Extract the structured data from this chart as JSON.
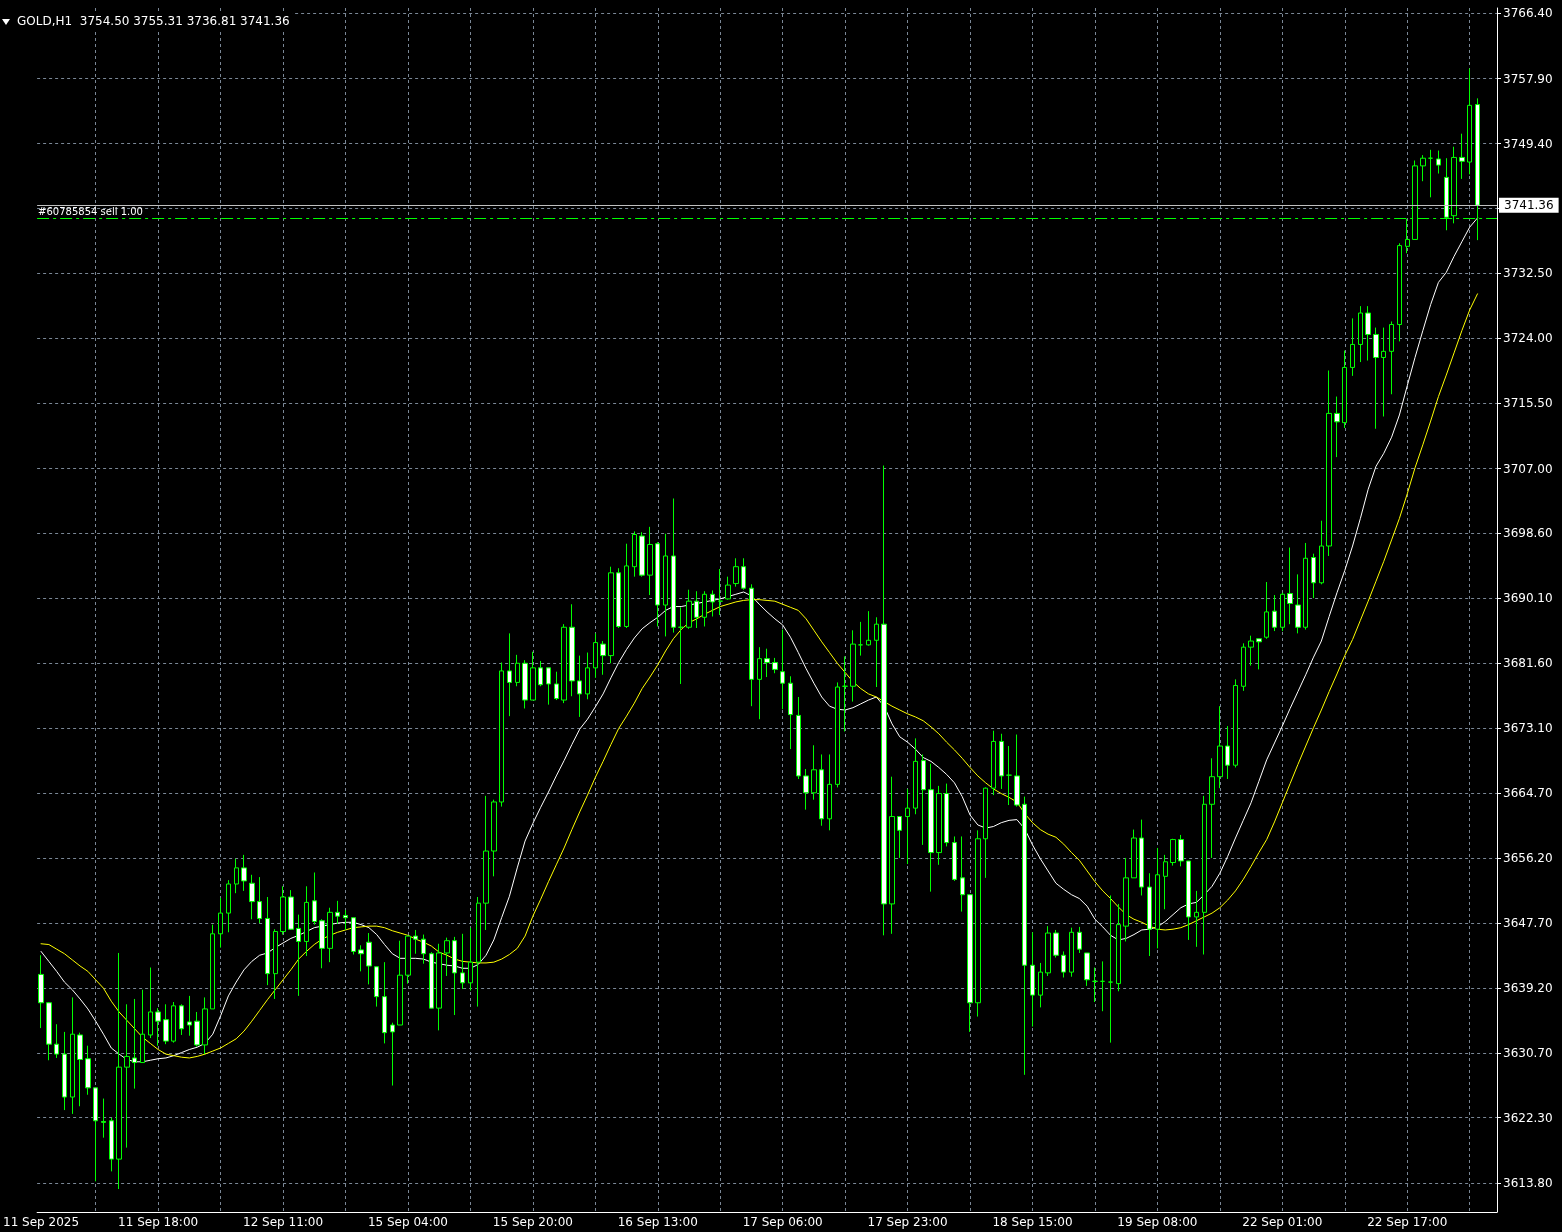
{
  "chart_data": {
    "type": "candlestick",
    "title": "GOLD,H1  3754.50 3755.31 3736.81 3741.36",
    "categories": [
      "11 Sep 2025",
      null,
      null,
      null,
      null,
      null,
      null,
      null,
      null,
      null,
      null,
      null,
      null,
      null,
      null,
      "11 Sep 18:00",
      null,
      null,
      null,
      null,
      null,
      null,
      null,
      null,
      null,
      null,
      null,
      null,
      null,
      null,
      null,
      "12 Sep 11:00",
      null,
      null,
      null,
      null,
      null,
      null,
      null,
      null,
      null,
      null,
      null,
      null,
      null,
      null,
      null,
      "15 Sep 04:00",
      null,
      null,
      null,
      null,
      null,
      null,
      null,
      null,
      null,
      null,
      null,
      null,
      null,
      null,
      null,
      "15 Sep 20:00",
      null,
      null,
      null,
      null,
      null,
      null,
      null,
      null,
      null,
      null,
      null,
      null,
      null,
      null,
      null,
      "16 Sep 13:00",
      null,
      null,
      null,
      null,
      null,
      null,
      null,
      null,
      null,
      null,
      null,
      null,
      null,
      null,
      null,
      "17 Sep 06:00",
      null,
      null,
      null,
      null,
      null,
      null,
      null,
      null,
      null,
      null,
      null,
      null,
      null,
      null,
      null,
      "17 Sep 23:00",
      null,
      null,
      null,
      null,
      null,
      null,
      null,
      null,
      null,
      null,
      null,
      null,
      null,
      null,
      null,
      "18 Sep 15:00",
      null,
      null,
      null,
      null,
      null,
      null,
      null,
      null,
      null,
      null,
      null,
      null,
      null,
      null,
      null,
      "19 Sep 08:00",
      null,
      null,
      null,
      null,
      null,
      null,
      null,
      null,
      null,
      null,
      null,
      null,
      null,
      null,
      null,
      "22 Sep 01:00",
      null,
      null,
      null,
      null,
      null,
      null,
      null,
      null,
      null,
      null,
      null,
      null,
      null,
      null,
      null,
      "22 Sep 17:00",
      null,
      null,
      null,
      null,
      null,
      null,
      null,
      null,
      null
    ],
    "ohlc": [
      [
        3641.0,
        3643.5,
        3634.0,
        3637.3
      ],
      [
        3637.3,
        3637.4,
        3629.8,
        3631.9
      ],
      [
        3631.9,
        3634.5,
        3630.1,
        3630.6
      ],
      [
        3630.6,
        3633.5,
        3623.3,
        3625.0
      ],
      [
        3625.0,
        3638.0,
        3622.8,
        3633.2
      ],
      [
        3633.1,
        3633.4,
        3623.8,
        3629.9
      ],
      [
        3630.0,
        3631.7,
        3625.3,
        3626.2
      ],
      [
        3626.2,
        3626.2,
        3614.0,
        3621.9
      ],
      [
        3621.8,
        3624.8,
        3619.7,
        3621.7
      ],
      [
        3621.9,
        3622.3,
        3615.3,
        3616.9
      ],
      [
        3616.9,
        3643.8,
        3613.0,
        3628.9
      ],
      [
        3628.9,
        3637.1,
        3618.4,
        3630.3
      ],
      [
        3630.1,
        3637.8,
        3626.1,
        3629.5
      ],
      [
        3629.5,
        3639.0,
        3629.5,
        3633.2
      ],
      [
        3633.1,
        3641.9,
        3632.7,
        3636.1
      ],
      [
        3636.1,
        3636.6,
        3631.7,
        3634.9
      ],
      [
        3635.1,
        3637.1,
        3631.9,
        3632.3
      ],
      [
        3632.3,
        3637.4,
        3632.1,
        3636.9
      ],
      [
        3636.9,
        3637.1,
        3633.1,
        3633.9
      ],
      [
        3634.8,
        3638.2,
        3633.0,
        3634.4
      ],
      [
        3634.9,
        3636.1,
        3631.6,
        3631.8
      ],
      [
        3631.8,
        3638.0,
        3630.6,
        3636.5
      ],
      [
        3636.5,
        3647.5,
        3636.5,
        3646.3
      ],
      [
        3646.3,
        3651.0,
        3644.5,
        3649.0
      ],
      [
        3649.0,
        3653.3,
        3646.5,
        3652.8
      ],
      [
        3652.8,
        3656.1,
        3651.6,
        3654.9
      ],
      [
        3654.9,
        3656.6,
        3651.9,
        3653.2
      ],
      [
        3652.9,
        3654.0,
        3648.2,
        3650.5
      ],
      [
        3650.5,
        3653.7,
        3647.7,
        3648.3
      ],
      [
        3648.3,
        3651.1,
        3639.6,
        3641.1
      ],
      [
        3641.1,
        3646.9,
        3637.8,
        3646.6
      ],
      [
        3646.6,
        3652.5,
        3646.2,
        3651.1
      ],
      [
        3651.1,
        3652.0,
        3646.8,
        3646.9
      ],
      [
        3647.0,
        3648.8,
        3638.2,
        3645.3
      ],
      [
        3645.3,
        3652.5,
        3643.4,
        3650.4
      ],
      [
        3650.6,
        3654.3,
        3647.5,
        3647.9
      ],
      [
        3648.0,
        3648.2,
        3641.8,
        3644.4
      ],
      [
        3644.4,
        3649.7,
        3642.6,
        3649.1
      ],
      [
        3649.1,
        3650.6,
        3647.6,
        3648.6
      ],
      [
        3648.7,
        3649.4,
        3646.8,
        3648.4
      ],
      [
        3648.4,
        3648.4,
        3643.6,
        3644.0
      ],
      [
        3644.2,
        3644.8,
        3641.4,
        3643.7
      ],
      [
        3645.2,
        3646.4,
        3639.7,
        3642.1
      ],
      [
        3642.0,
        3642.0,
        3636.8,
        3638.1
      ],
      [
        3638.1,
        3642.6,
        3632.0,
        3633.4
      ],
      [
        3634.4,
        3634.7,
        3626.5,
        3633.5
      ],
      [
        3634.4,
        3645.4,
        3634.4,
        3640.9
      ],
      [
        3640.9,
        3646.0,
        3639.8,
        3646.0
      ],
      [
        3646.0,
        3646.8,
        3643.7,
        3645.6
      ],
      [
        3645.6,
        3646.2,
        3642.4,
        3643.7
      ],
      [
        3643.7,
        3643.9,
        3636.6,
        3636.6
      ],
      [
        3636.6,
        3645.0,
        3633.7,
        3643.8
      ],
      [
        3643.8,
        3645.8,
        3640.8,
        3645.4
      ],
      [
        3645.4,
        3645.9,
        3635.7,
        3641.2
      ],
      [
        3641.2,
        3646.3,
        3639.1,
        3639.9
      ],
      [
        3639.9,
        3647.1,
        3638.9,
        3642.6
      ],
      [
        3642.6,
        3651.1,
        3636.8,
        3650.3
      ],
      [
        3650.3,
        3664.3,
        3646.8,
        3657.1
      ],
      [
        3657.1,
        3663.8,
        3653.8,
        3663.5
      ],
      [
        3663.5,
        3681.7,
        3662.9,
        3680.6
      ],
      [
        3680.6,
        3685.5,
        3674.7,
        3679.1
      ],
      [
        3679.1,
        3682.7,
        3678.6,
        3681.6
      ],
      [
        3681.6,
        3682.0,
        3675.7,
        3676.8
      ],
      [
        3676.8,
        3683.1,
        3676.8,
        3681.0
      ],
      [
        3681.0,
        3681.9,
        3678.6,
        3678.8
      ],
      [
        3681.0,
        3681.0,
        3676.2,
        3678.9
      ],
      [
        3678.9,
        3680.5,
        3676.8,
        3677.0
      ],
      [
        3676.8,
        3686.7,
        3676.4,
        3686.3
      ],
      [
        3686.3,
        3689.3,
        3677.3,
        3679.3
      ],
      [
        3679.3,
        3682.6,
        3674.6,
        3677.6
      ],
      [
        3677.6,
        3683.0,
        3676.9,
        3681.0
      ],
      [
        3681.0,
        3685.5,
        3679.7,
        3684.3
      ],
      [
        3684.1,
        3684.5,
        3680.1,
        3682.6
      ],
      [
        3682.6,
        3694.2,
        3681.6,
        3693.4
      ],
      [
        3693.4,
        3694.0,
        3686.2,
        3686.4
      ],
      [
        3686.4,
        3697.2,
        3686.2,
        3694.3
      ],
      [
        3694.2,
        3698.8,
        3692.9,
        3698.4
      ],
      [
        3698.2,
        3698.7,
        3692.9,
        3693.1
      ],
      [
        3693.1,
        3699.4,
        3690.5,
        3697.1
      ],
      [
        3697.2,
        3697.4,
        3686.4,
        3689.2
      ],
      [
        3689.2,
        3698.5,
        3685.1,
        3695.6
      ],
      [
        3695.6,
        3703.1,
        3685.6,
        3686.3
      ],
      [
        3686.3,
        3688.9,
        3678.9,
        3686.3
      ],
      [
        3686.3,
        3691.2,
        3686.1,
        3689.7
      ],
      [
        3689.7,
        3691.0,
        3686.2,
        3687.6
      ],
      [
        3687.6,
        3691.0,
        3686.4,
        3690.6
      ],
      [
        3690.6,
        3691.1,
        3687.7,
        3689.6
      ],
      [
        3689.7,
        3693.9,
        3687.9,
        3689.7
      ],
      [
        3690.0,
        3692.9,
        3689.9,
        3691.8
      ],
      [
        3692.0,
        3695.3,
        3691.6,
        3694.2
      ],
      [
        3694.2,
        3695.3,
        3691.2,
        3691.4
      ],
      [
        3691.4,
        3691.9,
        3676.0,
        3679.5
      ],
      [
        3679.5,
        3683.7,
        3674.3,
        3682.2
      ],
      [
        3682.2,
        3683.5,
        3679.8,
        3681.7
      ],
      [
        3681.7,
        3682.3,
        3680.3,
        3680.8
      ],
      [
        3680.5,
        3686.0,
        3675.6,
        3679.0
      ],
      [
        3679.0,
        3679.9,
        3670.4,
        3674.9
      ],
      [
        3674.8,
        3677.2,
        3666.5,
        3666.9
      ],
      [
        3666.9,
        3667.8,
        3662.5,
        3664.7
      ],
      [
        3664.7,
        3670.9,
        3663.8,
        3667.7
      ],
      [
        3667.7,
        3669.7,
        3660.4,
        3661.3
      ],
      [
        3661.3,
        3669.7,
        3659.8,
        3665.8
      ],
      [
        3665.8,
        3679.1,
        3665.4,
        3678.5
      ],
      [
        3678.6,
        3682.5,
        3672.7,
        3678.6
      ],
      [
        3678.6,
        3685.9,
        3676.6,
        3684.1
      ],
      [
        3684.0,
        3687.0,
        3682.6,
        3684.0
      ],
      [
        3684.0,
        3688.4,
        3683.9,
        3684.6
      ],
      [
        3684.6,
        3687.6,
        3678.5,
        3686.7
      ],
      [
        3686.7,
        3707.4,
        3646.1,
        3650.2
      ],
      [
        3650.2,
        3666.8,
        3646.3,
        3661.6
      ],
      [
        3661.6,
        3661.6,
        3656.2,
        3659.8
      ],
      [
        3661.6,
        3665.2,
        3655.4,
        3662.7
      ],
      [
        3662.7,
        3671.8,
        3661.9,
        3668.8
      ],
      [
        3668.9,
        3669.7,
        3657.9,
        3665.1
      ],
      [
        3665.1,
        3668.5,
        3651.8,
        3656.9
      ],
      [
        3656.9,
        3665.6,
        3655.3,
        3664.6
      ],
      [
        3664.6,
        3665.9,
        3657.7,
        3658.2
      ],
      [
        3658.2,
        3659.0,
        3653.2,
        3653.4
      ],
      [
        3653.6,
        3659.0,
        3649.2,
        3651.4
      ],
      [
        3651.4,
        3651.4,
        3633.5,
        3637.3
      ],
      [
        3637.3,
        3659.8,
        3635.5,
        3658.7
      ],
      [
        3658.7,
        3665.4,
        3653.6,
        3665.3
      ],
      [
        3665.3,
        3672.8,
        3664.4,
        3671.4
      ],
      [
        3671.4,
        3672.4,
        3665.2,
        3666.9
      ],
      [
        3667.0,
        3670.8,
        3663.1,
        3667.0
      ],
      [
        3666.9,
        3672.3,
        3662.9,
        3663.1
      ],
      [
        3663.2,
        3664.2,
        3627.9,
        3642.2
      ],
      [
        3642.2,
        3646.5,
        3634.2,
        3638.3
      ],
      [
        3638.3,
        3642.5,
        3636.7,
        3641.3
      ],
      [
        3641.2,
        3647.3,
        3640.8,
        3646.4
      ],
      [
        3646.4,
        3646.8,
        3643.2,
        3643.5
      ],
      [
        3643.5,
        3644.0,
        3640.6,
        3641.3
      ],
      [
        3641.3,
        3647.1,
        3640.7,
        3646.5
      ],
      [
        3646.5,
        3647.2,
        3643.8,
        3644.3
      ],
      [
        3643.8,
        3643.8,
        3639.5,
        3640.3
      ],
      [
        3640.1,
        3641.9,
        3637.4,
        3640.1
      ],
      [
        3640.1,
        3642.7,
        3636.2,
        3640.1
      ],
      [
        3640.0,
        3651.3,
        3632.1,
        3640.0
      ],
      [
        3639.8,
        3650.2,
        3638.8,
        3647.5
      ],
      [
        3647.3,
        3656.2,
        3645.3,
        3653.6
      ],
      [
        3653.6,
        3659.9,
        3653.6,
        3658.8
      ],
      [
        3658.8,
        3661.2,
        3651.3,
        3652.4
      ],
      [
        3652.4,
        3654.2,
        3643.4,
        3646.9
      ],
      [
        3646.9,
        3657.5,
        3644.4,
        3654.0
      ],
      [
        3653.8,
        3656.6,
        3649.5,
        3655.7
      ],
      [
        3655.6,
        3658.7,
        3655.2,
        3658.6
      ],
      [
        3658.6,
        3659.2,
        3655.1,
        3655.8
      ],
      [
        3655.8,
        3655.8,
        3645.5,
        3648.5
      ],
      [
        3648.5,
        3651.9,
        3644.6,
        3649.1
      ],
      [
        3649.1,
        3664.3,
        3643.6,
        3663.2
      ],
      [
        3663.2,
        3669.2,
        3656.2,
        3666.8
      ],
      [
        3666.8,
        3676.0,
        3665.3,
        3670.8
      ],
      [
        3670.8,
        3673.4,
        3666.5,
        3668.3
      ],
      [
        3668.3,
        3679.5,
        3668.0,
        3678.7
      ],
      [
        3678.6,
        3684.2,
        3678.0,
        3683.7
      ],
      [
        3683.7,
        3685.2,
        3681.3,
        3684.5
      ],
      [
        3684.8,
        3684.8,
        3680.8,
        3684.4
      ],
      [
        3685.0,
        3692.2,
        3684.8,
        3688.3
      ],
      [
        3688.4,
        3690.5,
        3685.8,
        3686.3
      ],
      [
        3686.3,
        3690.8,
        3685.8,
        3690.6
      ],
      [
        3690.7,
        3696.7,
        3686.7,
        3689.4
      ],
      [
        3689.2,
        3693.2,
        3685.5,
        3686.3
      ],
      [
        3686.3,
        3697.3,
        3686.0,
        3695.3
      ],
      [
        3695.4,
        3695.9,
        3690.1,
        3692.1
      ],
      [
        3692.1,
        3700.2,
        3691.9,
        3696.9
      ],
      [
        3696.9,
        3719.8,
        3695.6,
        3714.2
      ],
      [
        3714.2,
        3716.4,
        3708.5,
        3713.1
      ],
      [
        3713.0,
        3722.4,
        3712.3,
        3720.2
      ],
      [
        3720.2,
        3726.6,
        3719.1,
        3723.2
      ],
      [
        3723.2,
        3728.2,
        3720.9,
        3727.3
      ],
      [
        3727.3,
        3728.2,
        3721.1,
        3724.5
      ],
      [
        3724.5,
        3725.4,
        3712.2,
        3721.5
      ],
      [
        3721.5,
        3725.4,
        3713.8,
        3722.3
      ],
      [
        3722.3,
        3726.2,
        3716.7,
        3725.8
      ],
      [
        3725.8,
        3736.4,
        3723.6,
        3736.1
      ],
      [
        3736.0,
        3739.6,
        3735.1,
        3736.9
      ],
      [
        3736.9,
        3747.2,
        3736.9,
        3746.5
      ],
      [
        3746.5,
        3747.9,
        3744.5,
        3747.5
      ],
      [
        3747.5,
        3748.6,
        3742.4,
        3747.5
      ],
      [
        3747.4,
        3748.5,
        3745.5,
        3746.6
      ],
      [
        3745.0,
        3747.5,
        3738.1,
        3739.8
      ],
      [
        3740.0,
        3749.0,
        3739.0,
        3747.6
      ],
      [
        3747.6,
        3750.7,
        3744.8,
        3747.1
      ],
      [
        3747.0,
        3759.2,
        3745.4,
        3754.4
      ],
      [
        3754.5,
        3755.31,
        3736.81,
        3741.36
      ]
    ],
    "color": "#00ff00",
    "colors": [
      "#ffffff",
      "#ffffff",
      "#ffffff",
      "#ffffff",
      "#000000",
      "#ffffff",
      "#ffffff",
      "#ffffff",
      "#ffffff",
      "#ffffff",
      "#000000",
      "#000000",
      "#ffffff",
      "#000000",
      "#000000",
      "#ffffff",
      "#ffffff",
      "#000000",
      "#ffffff",
      "#ffffff",
      "#ffffff",
      "#000000",
      "#000000",
      "#000000",
      "#000000",
      "#000000",
      "#ffffff",
      "#ffffff",
      "#ffffff",
      "#ffffff",
      "#000000",
      "#000000",
      "#ffffff",
      "#ffffff",
      "#000000",
      "#ffffff",
      "#ffffff",
      "#000000",
      "#ffffff",
      "#ffffff",
      "#ffffff",
      "#ffffff",
      "#ffffff",
      "#ffffff",
      "#ffffff",
      "#ffffff",
      "#000000",
      "#000000",
      "#ffffff",
      "#ffffff",
      "#ffffff",
      "#000000",
      "#000000",
      "#ffffff",
      "#ffffff",
      "#000000",
      "#000000",
      "#000000",
      "#000000",
      "#000000",
      "#ffffff",
      "#000000",
      "#ffffff",
      "#000000",
      "#ffffff",
      "#ffffff",
      "#ffffff",
      "#000000",
      "#ffffff",
      "#ffffff",
      "#000000",
      "#000000",
      "#ffffff",
      "#000000",
      "#ffffff",
      "#000000",
      "#000000",
      "#ffffff",
      "#000000",
      "#ffffff",
      "#000000",
      "#ffffff",
      "#00ff00",
      "#000000",
      "#ffffff",
      "#000000",
      "#ffffff",
      "#00ff00",
      "#000000",
      "#000000",
      "#ffffff",
      "#ffffff",
      "#000000",
      "#ffffff",
      "#ffffff",
      "#ffffff",
      "#ffffff",
      "#ffffff",
      "#ffffff",
      "#000000",
      "#ffffff",
      "#000000",
      "#000000",
      "#00ff00",
      "#000000",
      "#00ff00",
      "#000000",
      "#000000",
      "#ffffff",
      "#000000",
      "#ffffff",
      "#000000",
      "#000000",
      "#ffffff",
      "#ffffff",
      "#000000",
      "#ffffff",
      "#ffffff",
      "#ffffff",
      "#ffffff",
      "#000000",
      "#000000",
      "#000000",
      "#ffffff",
      "#00ff00",
      "#ffffff",
      "#ffffff",
      "#ffffff",
      "#000000",
      "#000000",
      "#ffffff",
      "#ffffff",
      "#000000",
      "#ffffff",
      "#ffffff",
      "#00ff00",
      "#00ff00",
      "#00ff00",
      "#000000",
      "#000000",
      "#000000",
      "#ffffff",
      "#ffffff",
      "#000000",
      "#000000",
      "#000000",
      "#ffffff",
      "#ffffff",
      "#000000",
      "#000000",
      "#000000",
      "#000000",
      "#ffffff",
      "#000000",
      "#000000",
      "#000000",
      "#ffffff",
      "#000000",
      "#ffffff",
      "#000000",
      "#ffffff",
      "#ffffff",
      "#000000",
      "#ffffff",
      "#000000",
      "#000000",
      "#ffffff",
      "#000000",
      "#000000",
      "#000000",
      "#ffffff",
      "#ffffff",
      "#000000",
      "#000000",
      "#000000",
      "#000000",
      "#000000",
      "#000000",
      "#00ff00",
      "#ffffff",
      "#ffffff",
      "#000000",
      "#ffffff",
      "#000000",
      "#ffffff"
    ],
    "series": [
      {
        "type": "line",
        "color": "#ffffff",
        "values": [
          3644.0,
          3642.7,
          3641.4,
          3640.0,
          3639.0,
          3637.8,
          3636.5,
          3634.9,
          3633.2,
          3631.4,
          3630.6,
          3629.9,
          3629.6,
          3629.6,
          3629.8,
          3630.0,
          3630.1,
          3630.4,
          3630.8,
          3631.2,
          3631.5,
          3632.0,
          3633.2,
          3635.6,
          3638.2,
          3640.0,
          3641.6,
          3642.7,
          3643.5,
          3643.8,
          3644.5,
          3645.1,
          3645.7,
          3646.1,
          3646.6,
          3647.1,
          3647.3,
          3647.5,
          3647.7,
          3647.8,
          3647.8,
          3647.5,
          3647.1,
          3646.2,
          3644.9,
          3643.7,
          3643.1,
          3643.1,
          3643.1,
          3643.0,
          3642.6,
          3642.4,
          3642.2,
          3642.1,
          3641.8,
          3641.8,
          3642.3,
          3643.5,
          3645.5,
          3648.4,
          3651.2,
          3654.9,
          3658.4,
          3660.7,
          3662.8,
          3664.8,
          3666.9,
          3668.9,
          3671.0,
          3673.0,
          3674.3,
          3675.9,
          3677.6,
          3679.7,
          3681.7,
          3683.4,
          3684.9,
          3686.1,
          3686.9,
          3687.6,
          3688.5,
          3689.0,
          3689.0,
          3689.2,
          3689.4,
          3689.6,
          3689.8,
          3690.0,
          3690.3,
          3690.6,
          3690.9,
          3690.4,
          3689.3,
          3688.3,
          3687.4,
          3686.6,
          3685.0,
          3683.0,
          3680.9,
          3679.0,
          3677.2,
          3676.0,
          3675.6,
          3675.5,
          3675.8,
          3676.3,
          3676.8,
          3677.2,
          3676.0,
          3673.7,
          3672.0,
          3671.3,
          3670.4,
          3669.3,
          3668.8,
          3668.0,
          3667.1,
          3666.0,
          3664.2,
          3661.8,
          3660.5,
          3660.1,
          3660.3,
          3660.8,
          3661.1,
          3661.2,
          3660.0,
          3657.9,
          3656.1,
          3654.5,
          3652.9,
          3652.1,
          3651.4,
          3650.9,
          3649.9,
          3648.2,
          3647.2,
          3646.1,
          3645.5,
          3645.7,
          3646.2,
          3646.8,
          3646.9,
          3647.2,
          3647.9,
          3648.8,
          3649.7,
          3650.2,
          3650.4,
          3651.4,
          3652.5,
          3654.2,
          3656.4,
          3658.8,
          3661.1,
          3663.4,
          3666.2,
          3669.0,
          3671.2,
          3673.4,
          3675.7,
          3677.9,
          3680.1,
          3682.4,
          3684.5,
          3687.7,
          3690.8,
          3693.7,
          3696.9,
          3700.5,
          3704.3,
          3707.3,
          3709.0,
          3711.1,
          3714.0,
          3717.8,
          3721.5,
          3725.0,
          3728.4,
          3731.3,
          3732.6,
          3734.7,
          3736.6,
          3738.5,
          3739.7
        ]
      },
      {
        "type": "line",
        "color": "#ffff00",
        "values": [
          3645.0,
          3644.9,
          3644.3,
          3643.7,
          3642.9,
          3642.1,
          3641.4,
          3640.3,
          3639.2,
          3637.5,
          3636.1,
          3635.0,
          3633.9,
          3632.8,
          3632.0,
          3631.2,
          3630.6,
          3630.4,
          3630.2,
          3630.1,
          3630.3,
          3630.6,
          3631.0,
          3631.4,
          3632.0,
          3632.6,
          3633.6,
          3634.9,
          3636.3,
          3637.7,
          3639.0,
          3640.3,
          3641.6,
          3643.0,
          3644.0,
          3644.9,
          3645.6,
          3646.1,
          3646.5,
          3646.8,
          3647.1,
          3647.2,
          3647.3,
          3647.3,
          3647.1,
          3646.7,
          3646.4,
          3646.1,
          3645.6,
          3645.2,
          3644.7,
          3643.9,
          3643.5,
          3643.0,
          3642.7,
          3642.6,
          3642.5,
          3642.5,
          3642.6,
          3643.0,
          3643.6,
          3644.4,
          3646.0,
          3648.6,
          3650.8,
          3653.1,
          3655.3,
          3657.5,
          3659.9,
          3662.2,
          3664.4,
          3666.7,
          3668.8,
          3671.0,
          3673.1,
          3674.7,
          3676.4,
          3678.3,
          3679.8,
          3681.4,
          3683.2,
          3684.8,
          3686.0,
          3686.9,
          3687.4,
          3688.0,
          3688.5,
          3689.0,
          3689.3,
          3689.6,
          3689.8,
          3689.9,
          3689.9,
          3689.8,
          3689.7,
          3689.3,
          3688.9,
          3688.5,
          3687.4,
          3685.9,
          3684.4,
          3683.0,
          3681.6,
          3680.4,
          3679.2,
          3678.3,
          3677.6,
          3677.2,
          3676.6,
          3676.0,
          3675.5,
          3675.0,
          3674.6,
          3674.1,
          3673.3,
          3672.4,
          3671.3,
          3670.3,
          3669.2,
          3668.0,
          3666.9,
          3666.0,
          3665.2,
          3664.6,
          3664.1,
          3663.5,
          3662.0,
          3660.8,
          3659.9,
          3659.3,
          3658.9,
          3658.0,
          3656.9,
          3655.9,
          3654.5,
          3653.1,
          3651.9,
          3650.9,
          3649.8,
          3648.8,
          3648.2,
          3647.8,
          3647.3,
          3646.9,
          3646.8,
          3646.9,
          3647.1,
          3647.5,
          3648.0,
          3648.5,
          3649.0,
          3649.7,
          3650.7,
          3651.9,
          3653.4,
          3655.1,
          3656.9,
          3658.6,
          3660.9,
          3663.4,
          3665.9,
          3668.4,
          3670.8,
          3673.2,
          3675.5,
          3677.9,
          3680.2,
          3682.6,
          3684.7,
          3687.2,
          3689.7,
          3692.3,
          3694.9,
          3697.7,
          3700.5,
          3703.7,
          3707.1,
          3710.1,
          3713.2,
          3716.4,
          3719.2,
          3722.1,
          3725.0,
          3727.7,
          3729.8
        ]
      }
    ],
    "ylim": [
      3610.0,
      3767.1
    ],
    "yticks": [
      {
        "value": 3613.8,
        "label": "3613.80"
      },
      {
        "value": 3622.3,
        "label": "3622.30"
      },
      {
        "value": 3630.7,
        "label": "3630.70"
      },
      {
        "value": 3639.2,
        "label": "3639.20"
      },
      {
        "value": 3647.7,
        "label": "3647.70"
      },
      {
        "value": 3656.2,
        "label": "3656.20"
      },
      {
        "value": 3664.7,
        "label": "3664.70"
      },
      {
        "value": 3673.1,
        "label": "3673.10"
      },
      {
        "value": 3681.6,
        "label": "3681.60"
      },
      {
        "value": 3690.1,
        "label": "3690.10"
      },
      {
        "value": 3698.6,
        "label": "3698.60"
      },
      {
        "value": 3707.0,
        "label": "3707.00"
      },
      {
        "value": 3715.5,
        "label": "3715.50"
      },
      {
        "value": 3724.0,
        "label": "3724.00"
      },
      {
        "value": 3732.5,
        "label": "3732.50"
      },
      {
        "value": 3741.0,
        "label": null
      },
      {
        "value": 3749.4,
        "label": "3749.40"
      },
      {
        "value": 3757.9,
        "label": "3757.90"
      },
      {
        "value": 3766.4,
        "label": "3766.40"
      }
    ],
    "grid": true,
    "ref_lines": [
      {
        "axis": "y",
        "value": 3741.36,
        "label": "3741.36",
        "color": "#c0c0c0"
      },
      {
        "axis": "y",
        "value": 3739.7,
        "label": "#60785854 sell 1.00",
        "color": "#00ff00",
        "line_style": "dashed"
      }
    ]
  }
}
